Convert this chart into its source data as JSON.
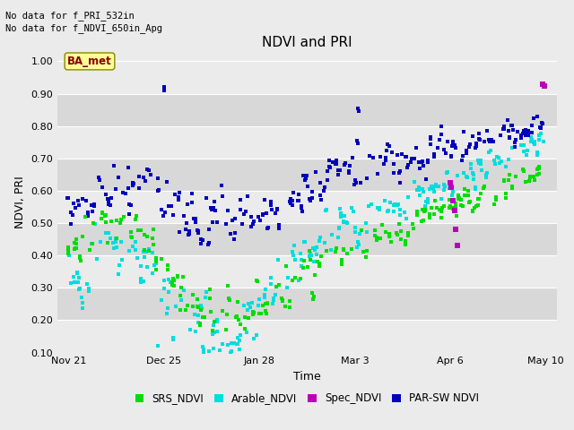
{
  "title": "NDVI and PRI",
  "xlabel": "Time",
  "ylabel": "NDVI, PRI",
  "text_line1": "No data for f_PRI_532in",
  "text_line2": "No data for f_NDVI_650in_Apg",
  "ba_met_label": "BA_met",
  "ylim": [
    0.1,
    1.03
  ],
  "yticks": [
    0.1,
    0.2,
    0.3,
    0.4,
    0.5,
    0.6,
    0.7,
    0.8,
    0.9,
    1.0
  ],
  "xtick_positions": [
    0,
    34,
    68,
    102,
    136,
    170
  ],
  "xtick_labels": [
    "Nov 21",
    "Dec 25",
    "Jan 28",
    "Mar 3",
    "Apr 6",
    "May 10"
  ],
  "legend_labels": [
    "SRS_NDVI",
    "Arable_NDVI",
    "Spec_NDVI",
    "PAR-SW NDVI"
  ],
  "colors": {
    "SRS_NDVI": "#00dd00",
    "Arable_NDVI": "#00dddd",
    "Spec_NDVI": "#bb00bb",
    "PAR_SW_NDVI": "#0000bb"
  },
  "bg_light": "#ebebeb",
  "bg_dark": "#d8d8d8",
  "grid_color": "#ffffff",
  "title_fontsize": 11,
  "axis_fontsize": 9,
  "tick_fontsize": 8,
  "markersize": 10,
  "xlim": [
    -4,
    174
  ]
}
